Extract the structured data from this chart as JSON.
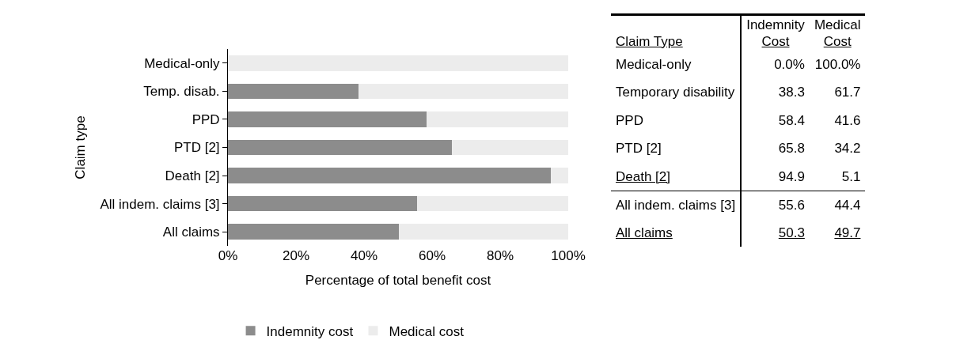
{
  "chart_data": {
    "type": "bar",
    "orientation": "horizontal",
    "stacked": true,
    "categories": [
      "Medical-only",
      "Temp. disab.",
      "PPD",
      "PTD [2]",
      "Death [2]",
      "All indem. claims [3]",
      "All claims"
    ],
    "y2_categories": [
      "Medical-only",
      "Temporary disability",
      "PPD",
      "PTD [2]",
      "Death [2]",
      "All indem. claims [3]",
      "All claims"
    ],
    "series": [
      {
        "name": "Indemnity cost",
        "color": "#8c8c8c",
        "values": [
          0,
          38.3,
          58.4,
          65.8,
          94.9,
          55.6,
          50.3
        ],
        "value_labels": [
          "0.0%",
          "38.3",
          "58.4",
          "65.8",
          "94.9",
          "55.6",
          "50.3"
        ]
      },
      {
        "name": "Medical cost",
        "color": "#ececec",
        "values": [
          100,
          61.7,
          41.6,
          34.2,
          5.1,
          44.4,
          49.7
        ],
        "value_labels": [
          "100.0%",
          "61.7",
          "41.6",
          "34.2",
          "5.1",
          "44.4",
          "49.7"
        ]
      }
    ],
    "xlim": [
      0,
      100
    ],
    "xticks": [
      {
        "value": 0,
        "label": "0%"
      },
      {
        "value": 20,
        "label": "20%"
      },
      {
        "value": 40,
        "label": "40%"
      },
      {
        "value": 60,
        "label": "60%"
      },
      {
        "value": 80,
        "label": "80%"
      },
      {
        "value": 100,
        "label": "100%"
      }
    ],
    "xlabel": "Percentage of total benefit cost",
    "ylabel": "Claim type",
    "annotations": [
      "Claim Type",
      "Indemnity Cost",
      "Medical Cost"
    ],
    "legend": "bottom",
    "grid": false
  }
}
